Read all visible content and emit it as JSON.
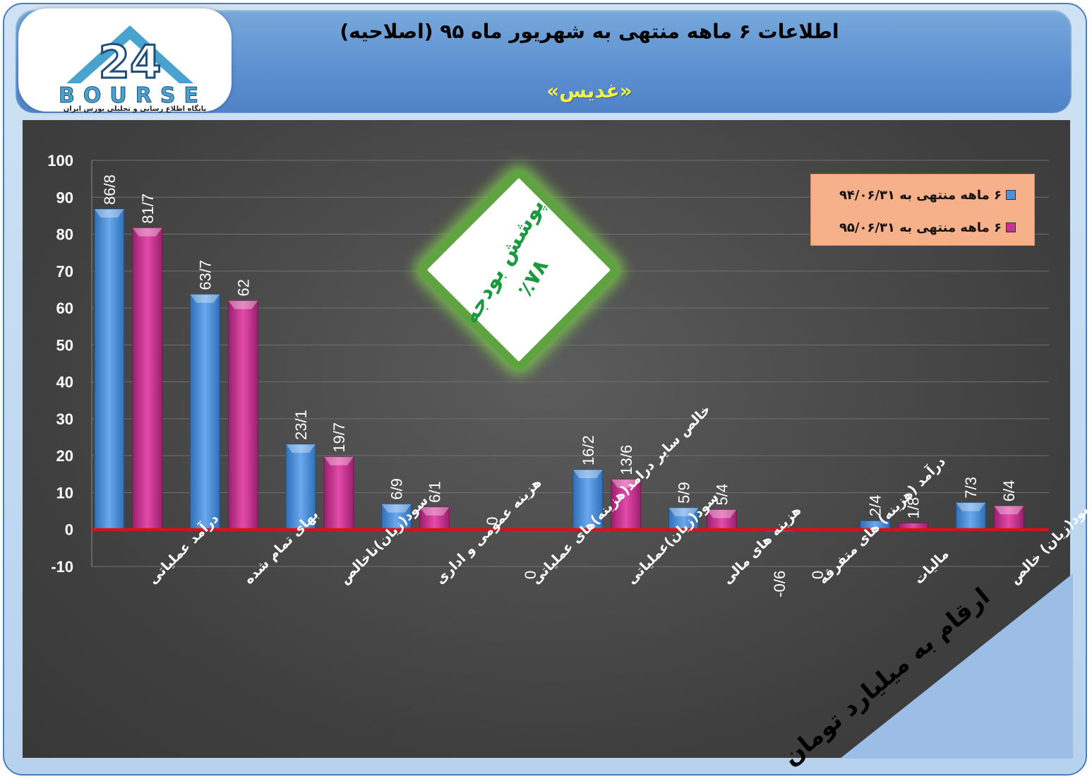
{
  "header": {
    "title": "اطلاعات ۶ ماهه منتهی به شهریور ماه ۹۵ (اصلاحیه)",
    "company": "«غدیس»"
  },
  "logo": {
    "wordmark": "BOURSE",
    "subtitle": "پایگاه اطلاع رسانی و تحلیلی بورس ایران",
    "mark": "24"
  },
  "badge": {
    "line1": "پوشش بودجه",
    "line2": "٪۷۸"
  },
  "units_note": "ارقام به میلیارد تومان",
  "colors": {
    "series1": "#4f8fd6",
    "series2": "#c7318f",
    "zero_line": "#e01010",
    "header": "#5b8fd0",
    "legend_bg": "#f6b08a",
    "badge_green": "#1a9940"
  },
  "chart_data": {
    "type": "bar",
    "categories": [
      "درآمد عملیاتی",
      "بهای تمام شده",
      "سود(زیان)ناخالص",
      "هزینه عمومی و اداری",
      "خالص سایر درامد(هزینه)های عملیاتی",
      "سود(زیان)عملیاتی",
      "هزینه های مالی",
      "درآمد (هزینه) های متفرقه",
      "مالیات",
      "سود(زیان) خالص"
    ],
    "series": [
      {
        "name": "۶ ماهه منتهی به ۹۴/۰۶/۳۱",
        "values": [
          86.8,
          63.7,
          23.1,
          6.9,
          0,
          16.2,
          5.9,
          -0.6,
          2.4,
          7.3
        ],
        "labels": [
          "86/8",
          "63/7",
          "23/1",
          "6/9",
          "0",
          "16/2",
          "5/9",
          "-0/6",
          "2/4",
          "7/3"
        ]
      },
      {
        "name": "۶ ماهه منتهی به ۹۵/۰۶/۳۱",
        "values": [
          81.7,
          62,
          19.7,
          6.1,
          0,
          13.6,
          5.4,
          0,
          1.8,
          6.4
        ],
        "labels": [
          "81/7",
          "62",
          "19/7",
          "6/1",
          "0",
          "13/6",
          "5/4",
          "0",
          "1/8",
          "6/4"
        ]
      }
    ],
    "y_ticks": [
      100,
      90,
      80,
      70,
      60,
      50,
      40,
      30,
      20,
      10,
      0,
      -10
    ],
    "ylim": [
      -10,
      100
    ],
    "grid": true,
    "legend_position": "top-right"
  }
}
